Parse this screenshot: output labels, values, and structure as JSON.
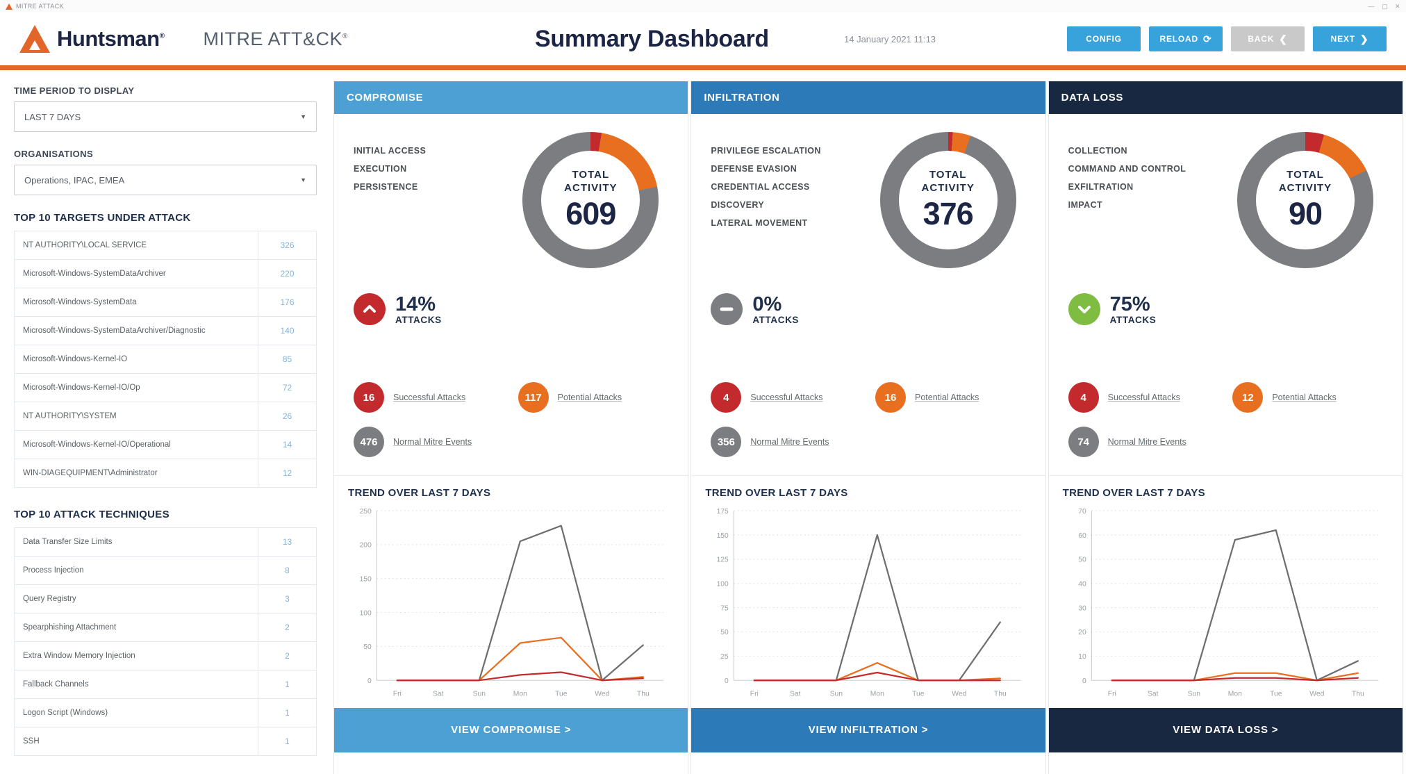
{
  "window": {
    "title": "MITRE ATTACK",
    "minimize": "—",
    "maximize": "▢",
    "close": "✕"
  },
  "header": {
    "logo_text": "Huntsman",
    "logo_reg": "®",
    "product": "MITRE ATT&CK",
    "product_reg": "®",
    "title": "Summary Dashboard",
    "datetime": "14 January 2021 11:13",
    "buttons": {
      "config": "CONFIG",
      "reload": "RELOAD",
      "back": "BACK",
      "next": "NEXT"
    }
  },
  "sidebar": {
    "time_period": {
      "label": "TIME PERIOD TO DISPLAY",
      "value": "LAST 7 DAYS"
    },
    "organisations": {
      "label": "ORGANISATIONS",
      "value": "Operations, IPAC, EMEA"
    },
    "targets": {
      "title": "TOP 10 TARGETS UNDER ATTACK",
      "rows": [
        {
          "name": "NT AUTHORITY\\LOCAL SERVICE",
          "count": "326"
        },
        {
          "name": "Microsoft-Windows-SystemDataArchiver",
          "count": "220"
        },
        {
          "name": "Microsoft-Windows-SystemData",
          "count": "176"
        },
        {
          "name": "Microsoft-Windows-SystemDataArchiver/Diagnostic",
          "count": "140"
        },
        {
          "name": "Microsoft-Windows-Kernel-IO",
          "count": "85"
        },
        {
          "name": "Microsoft-Windows-Kernel-IO/Op",
          "count": "72"
        },
        {
          "name": "NT AUTHORITY\\SYSTEM",
          "count": "26"
        },
        {
          "name": "Microsoft-Windows-Kernel-IO/Operational",
          "count": "14"
        },
        {
          "name": "WIN-DIAGEQUIPMENT\\Administrator",
          "count": "12"
        }
      ]
    },
    "techniques": {
      "title": "TOP 10 ATTACK TECHNIQUES",
      "rows": [
        {
          "name": "Data Transfer Size Limits",
          "count": "13"
        },
        {
          "name": "Process Injection",
          "count": "8"
        },
        {
          "name": "Query Registry",
          "count": "3"
        },
        {
          "name": "Spearphishing Attachment",
          "count": "2"
        },
        {
          "name": "Extra Window Memory Injection",
          "count": "2"
        },
        {
          "name": "Fallback Channels",
          "count": "1"
        },
        {
          "name": "Logon Script (Windows)",
          "count": "1"
        },
        {
          "name": "SSH",
          "count": "1"
        }
      ]
    }
  },
  "columns": [
    {
      "title": "COMPROMISE",
      "header_color": "#4da0d4",
      "tactics": [
        "INITIAL ACCESS",
        "EXECUTION",
        "PERSISTENCE"
      ],
      "donut_label1": "TOTAL",
      "donut_label2": "ACTIVITY",
      "total": "609",
      "trend": {
        "direction": "up",
        "pct": "14%",
        "label": "ATTACKS",
        "color": "#c22a2e"
      },
      "stats": [
        {
          "value": "16",
          "label": "Successful Attacks",
          "color": "#c22a2e"
        },
        {
          "value": "117",
          "label": "Potential Attacks",
          "color": "#e76f1f"
        },
        {
          "value": "476",
          "label": "Normal Mitre Events",
          "color": "#7c7d80"
        }
      ],
      "view_button": "VIEW COMPROMISE >",
      "button_color": "#4da0d4"
    },
    {
      "title": "INFILTRATION",
      "header_color": "#2c7ab8",
      "tactics": [
        "PRIVILEGE ESCALATION",
        "DEFENSE EVASION",
        "CREDENTIAL ACCESS",
        "DISCOVERY",
        "LATERAL MOVEMENT"
      ],
      "donut_label1": "TOTAL",
      "donut_label2": "ACTIVITY",
      "total": "376",
      "trend": {
        "direction": "flat",
        "pct": "0%",
        "label": "ATTACKS",
        "color": "#7c7d80"
      },
      "stats": [
        {
          "value": "4",
          "label": "Successful Attacks",
          "color": "#c22a2e"
        },
        {
          "value": "16",
          "label": "Potential Attacks",
          "color": "#e76f1f"
        },
        {
          "value": "356",
          "label": "Normal Mitre Events",
          "color": "#7c7d80"
        }
      ],
      "view_button": "VIEW INFILTRATION >",
      "button_color": "#2c7ab8"
    },
    {
      "title": "DATA LOSS",
      "header_color": "#172840",
      "tactics": [
        "COLLECTION",
        "COMMAND AND CONTROL",
        "EXFILTRATION",
        "IMPACT"
      ],
      "donut_label1": "TOTAL",
      "donut_label2": "ACTIVITY",
      "total": "90",
      "trend": {
        "direction": "down",
        "pct": "75%",
        "label": "ATTACKS",
        "color": "#7fbc42"
      },
      "stats": [
        {
          "value": "4",
          "label": "Successful Attacks",
          "color": "#c22a2e"
        },
        {
          "value": "12",
          "label": "Potential Attacks",
          "color": "#e76f1f"
        },
        {
          "value": "74",
          "label": "Normal Mitre Events",
          "color": "#7c7d80"
        }
      ],
      "view_button": "VIEW DATA LOSS >",
      "button_color": "#172840"
    }
  ],
  "chart_data": [
    {
      "type": "line",
      "title": "TREND OVER LAST 7 DAYS",
      "x": [
        "Fri",
        "Sat",
        "Sun",
        "Mon",
        "Tue",
        "Wed",
        "Thu"
      ],
      "ylim": [
        0,
        250
      ],
      "yticks": [
        0,
        50,
        100,
        150,
        200,
        250
      ],
      "grid": true,
      "legend": "none",
      "series": [
        {
          "name": "Normal Mitre Events",
          "color": "#6d6e71",
          "values": [
            0,
            0,
            0,
            205,
            228,
            0,
            52
          ]
        },
        {
          "name": "Potential Attacks",
          "color": "#e76f1f",
          "values": [
            0,
            0,
            0,
            55,
            63,
            0,
            5
          ]
        },
        {
          "name": "Successful Attacks",
          "color": "#c22a2e",
          "values": [
            0,
            0,
            0,
            8,
            12,
            0,
            3
          ]
        }
      ]
    },
    {
      "type": "line",
      "title": "TREND OVER LAST 7 DAYS",
      "x": [
        "Fri",
        "Sat",
        "Sun",
        "Mon",
        "Tue",
        "Wed",
        "Thu"
      ],
      "ylim": [
        0,
        175
      ],
      "yticks": [
        0,
        25,
        50,
        75,
        100,
        125,
        150,
        175
      ],
      "grid": true,
      "legend": "none",
      "series": [
        {
          "name": "Normal Mitre Events",
          "color": "#6d6e71",
          "values": [
            0,
            0,
            0,
            150,
            0,
            0,
            60
          ]
        },
        {
          "name": "Potential Attacks",
          "color": "#e76f1f",
          "values": [
            0,
            0,
            0,
            18,
            0,
            0,
            2
          ]
        },
        {
          "name": "Successful Attacks",
          "color": "#c22a2e",
          "values": [
            0,
            0,
            0,
            8,
            0,
            0,
            0
          ]
        }
      ]
    },
    {
      "type": "line",
      "title": "TREND OVER LAST 7 DAYS",
      "x": [
        "Fri",
        "Sat",
        "Sun",
        "Mon",
        "Tue",
        "Wed",
        "Thu"
      ],
      "ylim": [
        0,
        70
      ],
      "yticks": [
        0,
        10,
        20,
        30,
        40,
        50,
        60,
        70
      ],
      "grid": true,
      "legend": "none",
      "series": [
        {
          "name": "Normal Mitre Events",
          "color": "#6d6e71",
          "values": [
            0,
            0,
            0,
            58,
            62,
            0,
            8
          ]
        },
        {
          "name": "Potential Attacks",
          "color": "#e76f1f",
          "values": [
            0,
            0,
            0,
            3,
            3,
            0,
            3
          ]
        },
        {
          "name": "Successful Attacks",
          "color": "#c22a2e",
          "values": [
            0,
            0,
            0,
            1,
            1,
            0,
            1
          ]
        }
      ]
    }
  ]
}
